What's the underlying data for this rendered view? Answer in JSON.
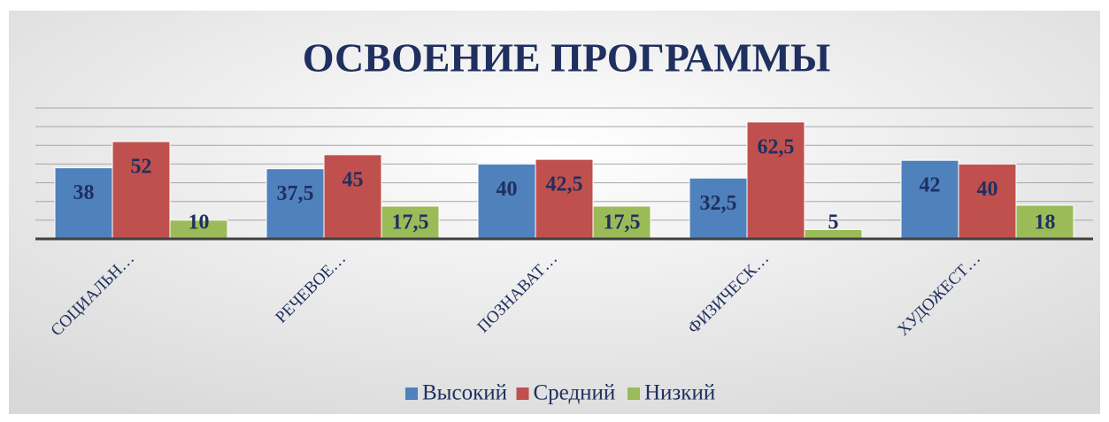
{
  "chart_data": {
    "type": "bar",
    "title": "ОСВОЕНИЕ ПРОГРАММЫ",
    "categories": [
      "СОЦИАЛЬН…",
      "РЕЧЕВОЕ…",
      "ПОЗНАВАТ…",
      "ФИЗИЧЕСК…",
      "ХУДОЖЕСТ…"
    ],
    "series": [
      {
        "name": "Высокий",
        "color": "#4f81bd",
        "values": [
          38,
          37.5,
          40,
          32.5,
          42
        ],
        "value_labels": [
          "38",
          "37,5",
          "40",
          "32,5",
          "42"
        ]
      },
      {
        "name": "Средний",
        "color": "#c0504d",
        "values": [
          52,
          45,
          42.5,
          62.5,
          40
        ],
        "value_labels": [
          "52",
          "45",
          "42,5",
          "62,5",
          "40"
        ]
      },
      {
        "name": "Низкий",
        "color": "#9bbb59",
        "values": [
          10,
          17.5,
          17.5,
          5,
          18
        ],
        "value_labels": [
          "10",
          "17,5",
          "17,5",
          "5",
          "18"
        ]
      }
    ],
    "ylim": [
      0,
      70
    ],
    "yticks": [
      0,
      10,
      20,
      30,
      40,
      50,
      60,
      70
    ],
    "grid": true,
    "legend": "bottom"
  }
}
